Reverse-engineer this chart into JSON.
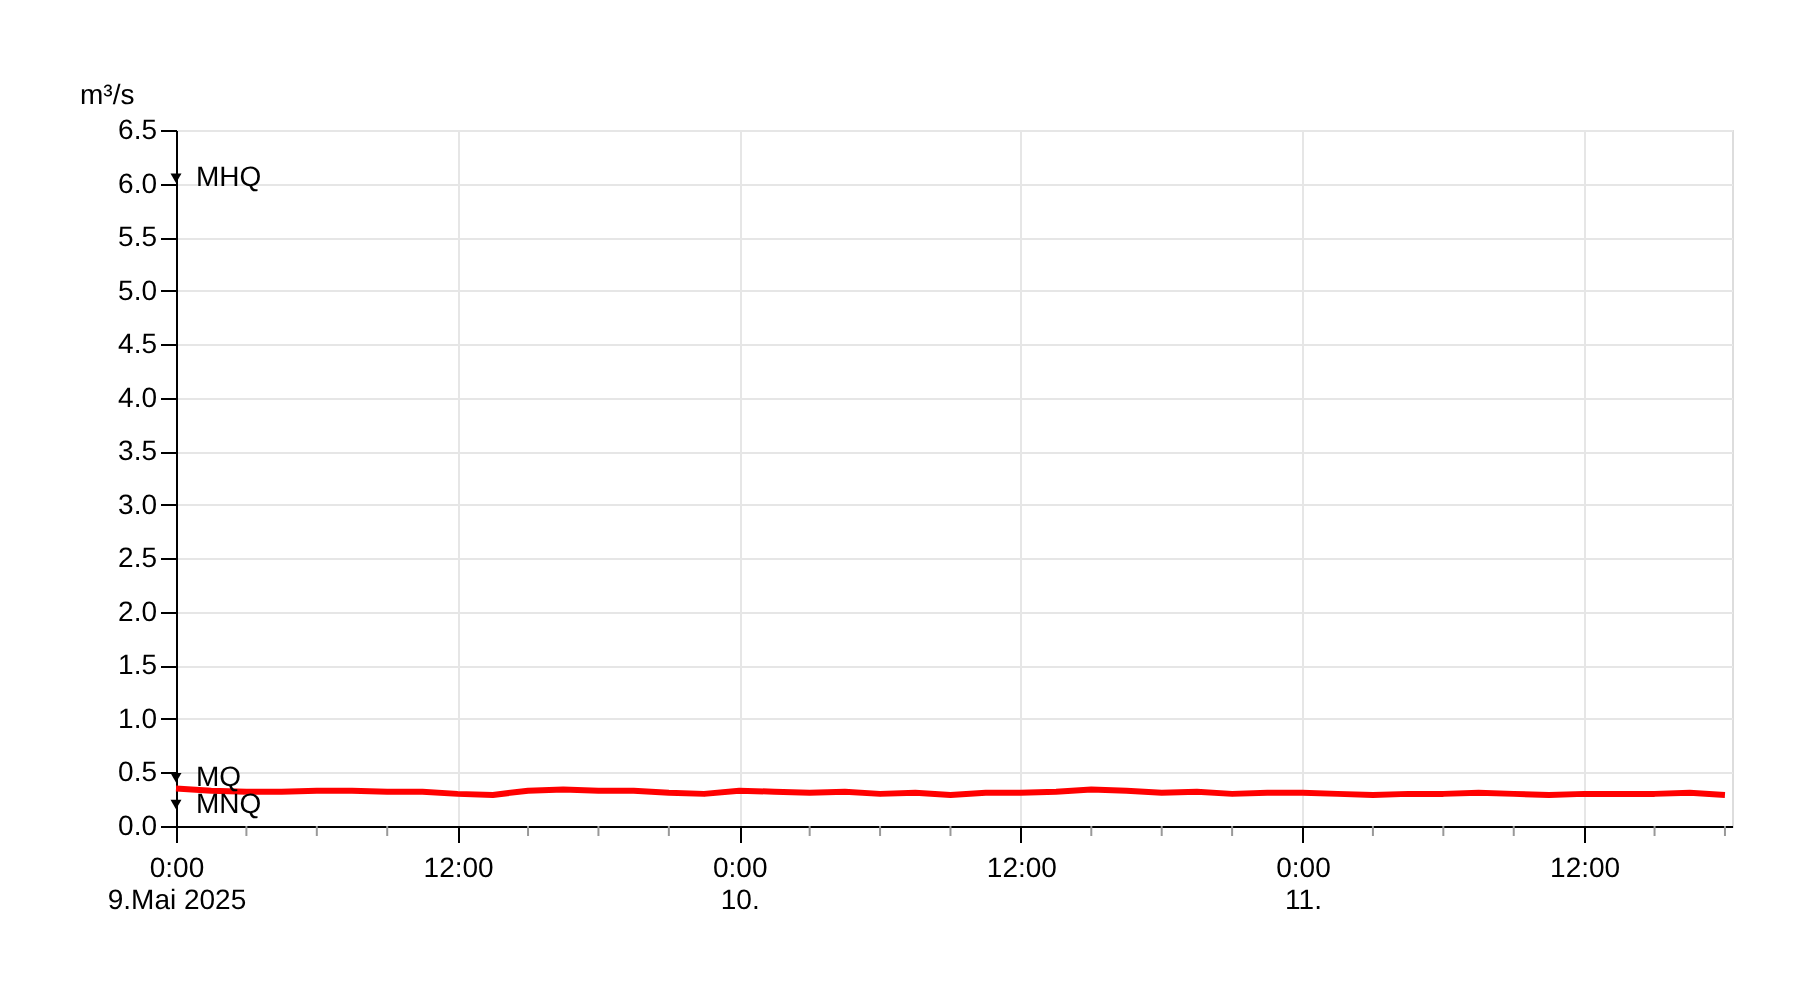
{
  "chart_data": {
    "type": "line",
    "ylabel": "m³/s",
    "x": [
      "2025-05-09T00:00",
      "2025-05-09T01:30",
      "2025-05-09T03:00",
      "2025-05-09T04:30",
      "2025-05-09T06:00",
      "2025-05-09T07:30",
      "2025-05-09T09:00",
      "2025-05-09T10:30",
      "2025-05-09T12:00",
      "2025-05-09T13:30",
      "2025-05-09T15:00",
      "2025-05-09T16:30",
      "2025-05-09T18:00",
      "2025-05-09T19:30",
      "2025-05-09T21:00",
      "2025-05-09T22:30",
      "2025-05-10T00:00",
      "2025-05-10T01:30",
      "2025-05-10T03:00",
      "2025-05-10T04:30",
      "2025-05-10T06:00",
      "2025-05-10T07:30",
      "2025-05-10T09:00",
      "2025-05-10T10:30",
      "2025-05-10T12:00",
      "2025-05-10T13:30",
      "2025-05-10T15:00",
      "2025-05-10T16:30",
      "2025-05-10T18:00",
      "2025-05-10T19:30",
      "2025-05-10T21:00",
      "2025-05-10T22:30",
      "2025-05-11T00:00",
      "2025-05-11T01:30",
      "2025-05-11T03:00",
      "2025-05-11T04:30",
      "2025-05-11T06:00",
      "2025-05-11T07:30",
      "2025-05-11T09:00",
      "2025-05-11T10:30",
      "2025-05-11T12:00",
      "2025-05-11T13:30",
      "2025-05-11T15:00",
      "2025-05-11T16:30",
      "2025-05-11T18:00"
    ],
    "series": [
      {
        "color": "#ff0000",
        "values": [
          0.35,
          0.33,
          0.32,
          0.32,
          0.33,
          0.33,
          0.32,
          0.32,
          0.3,
          0.29,
          0.33,
          0.34,
          0.33,
          0.33,
          0.31,
          0.3,
          0.33,
          0.32,
          0.31,
          0.32,
          0.3,
          0.31,
          0.29,
          0.31,
          0.31,
          0.32,
          0.34,
          0.33,
          0.31,
          0.32,
          0.3,
          0.31,
          0.31,
          0.3,
          0.29,
          0.3,
          0.3,
          0.31,
          0.3,
          0.29,
          0.3,
          0.3,
          0.3,
          0.31,
          0.29
        ]
      }
    ],
    "xlim": [
      "2025-05-09T00:00",
      "2025-05-11T18:18"
    ],
    "xticks": [
      {
        "value": "2025-05-09T00:00",
        "label": "0:00\n9.Mai 2025"
      },
      {
        "value": "2025-05-09T03:00",
        "label": null
      },
      {
        "value": "2025-05-09T06:00",
        "label": null
      },
      {
        "value": "2025-05-09T09:00",
        "label": null
      },
      {
        "value": "2025-05-09T12:00",
        "label": "12:00"
      },
      {
        "value": "2025-05-09T15:00",
        "label": null
      },
      {
        "value": "2025-05-09T18:00",
        "label": null
      },
      {
        "value": "2025-05-09T21:00",
        "label": null
      },
      {
        "value": "2025-05-10T00:00",
        "label": "0:00\n10."
      },
      {
        "value": "2025-05-10T03:00",
        "label": null
      },
      {
        "value": "2025-05-10T06:00",
        "label": null
      },
      {
        "value": "2025-05-10T09:00",
        "label": null
      },
      {
        "value": "2025-05-10T12:00",
        "label": "12:00"
      },
      {
        "value": "2025-05-10T15:00",
        "label": null
      },
      {
        "value": "2025-05-10T18:00",
        "label": null
      },
      {
        "value": "2025-05-10T21:00",
        "label": null
      },
      {
        "value": "2025-05-11T00:00",
        "label": "0:00\n11."
      },
      {
        "value": "2025-05-11T03:00",
        "label": null
      },
      {
        "value": "2025-05-11T06:00",
        "label": null
      },
      {
        "value": "2025-05-11T09:00",
        "label": null
      },
      {
        "value": "2025-05-11T12:00",
        "label": "12:00"
      },
      {
        "value": "2025-05-11T15:00",
        "label": null
      },
      {
        "value": "2025-05-11T18:00",
        "label": null
      }
    ],
    "ylim": [
      0,
      6.5
    ],
    "yticks": [
      {
        "value": 0,
        "label": "0.0"
      },
      {
        "value": 0.5,
        "label": "0.5"
      },
      {
        "value": 1,
        "label": "1.0"
      },
      {
        "value": 1.5,
        "label": "1.5"
      },
      {
        "value": 2,
        "label": "2.0"
      },
      {
        "value": 2.5,
        "label": "2.5"
      },
      {
        "value": 3,
        "label": "3.0"
      },
      {
        "value": 3.5,
        "label": "3.5"
      },
      {
        "value": 4,
        "label": "4.0"
      },
      {
        "value": 4.5,
        "label": "4.5"
      },
      {
        "value": 5,
        "label": "5.0"
      },
      {
        "value": 5.5,
        "label": "5.5"
      },
      {
        "value": 6,
        "label": "6.0"
      },
      {
        "value": 6.5,
        "label": "6.5"
      }
    ],
    "annotations": [
      {
        "text": "MHQ",
        "x": "2025-05-09T00:00",
        "y": 6.05
      },
      {
        "text": "MQ",
        "x": "2025-05-09T00:00",
        "y": 0.45
      },
      {
        "text": "MNQ",
        "x": "2025-05-09T00:00",
        "y": 0.2
      }
    ],
    "grid": true,
    "marker": "none",
    "line_style": "solid"
  }
}
